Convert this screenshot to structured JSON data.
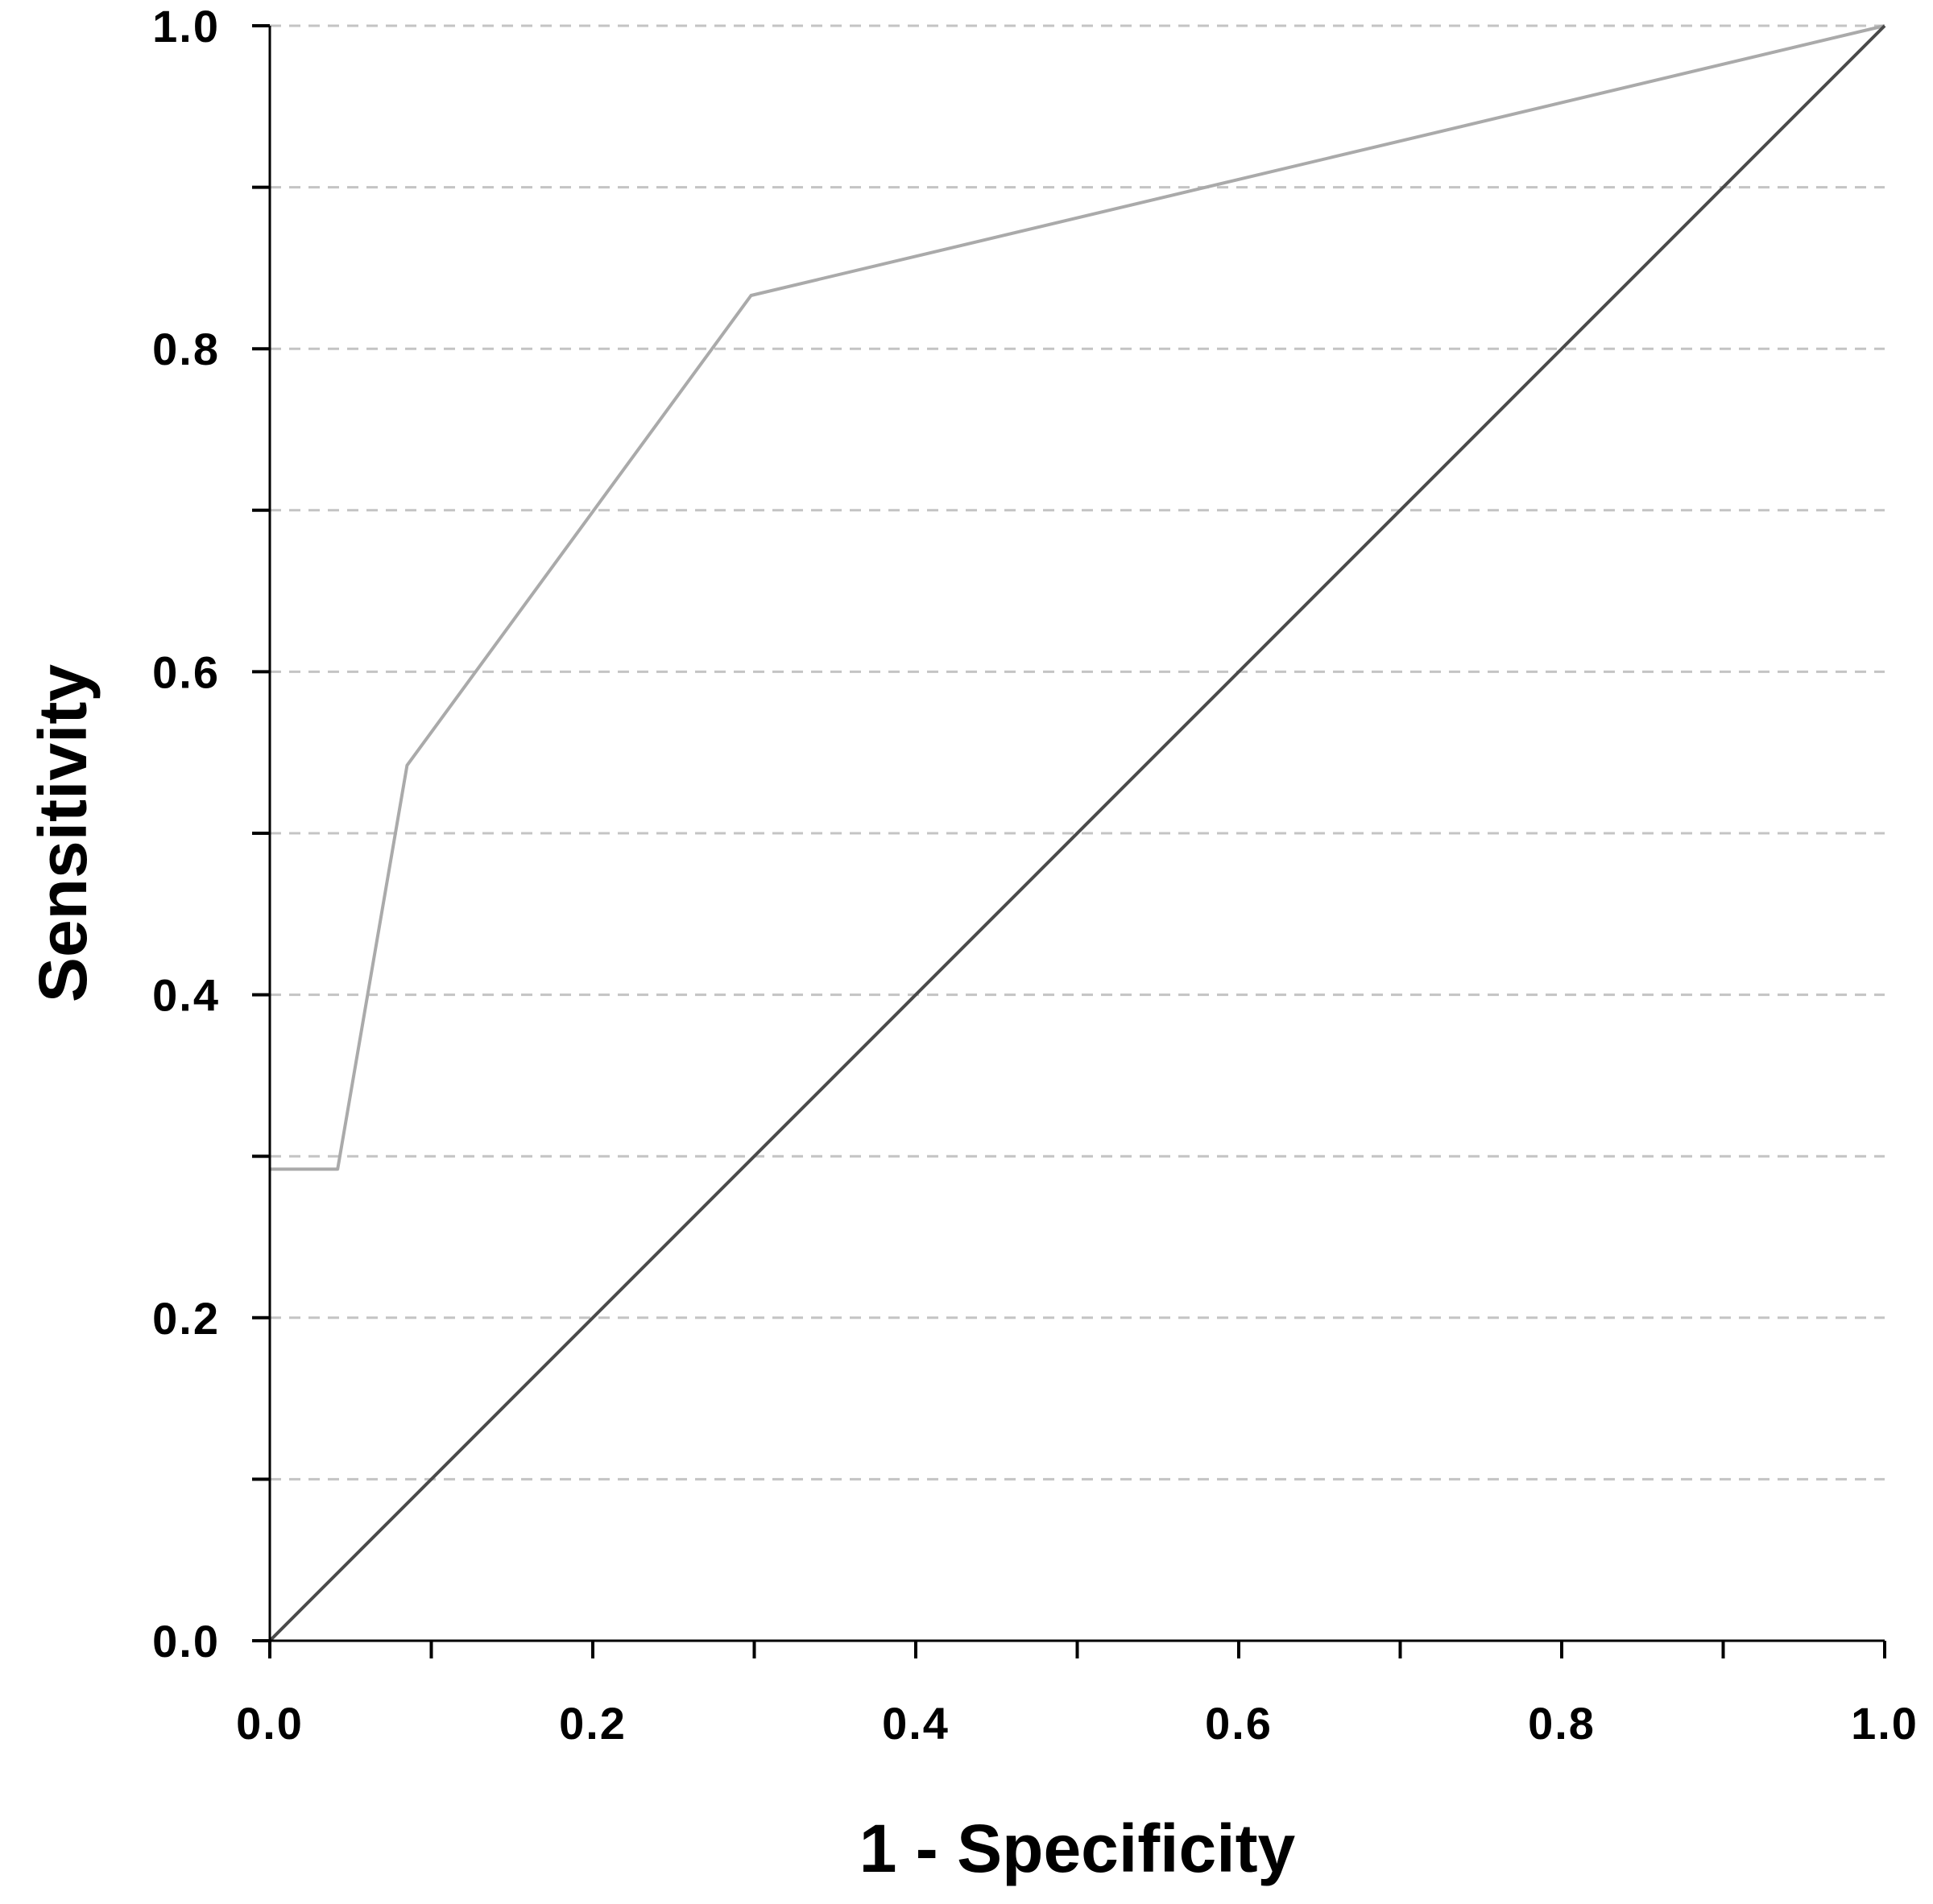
{
  "chart_data": {
    "type": "line",
    "title": "",
    "xlabel": "1 - Specificity",
    "ylabel": "Sensitivity",
    "xlim": [
      0,
      1
    ],
    "ylim": [
      0,
      1
    ],
    "x_ticks": [
      0.0,
      0.2,
      0.4,
      0.6,
      0.8,
      1.0
    ],
    "x_tick_labels": [
      "0.0",
      "0.2",
      "0.4",
      "0.6",
      "0.8",
      "1.0"
    ],
    "x_minor_ticks": [
      0.1,
      0.3,
      0.5,
      0.7,
      0.9
    ],
    "y_ticks": [
      0.0,
      0.2,
      0.4,
      0.6,
      0.8,
      1.0
    ],
    "y_tick_labels": [
      "0.0",
      "0.2",
      "0.4",
      "0.6",
      "0.8",
      "1.0"
    ],
    "y_minor_ticks": [
      0.1,
      0.3,
      0.5,
      0.7,
      0.9
    ],
    "grid": "horizontal dashed",
    "legend": "none",
    "series": [
      {
        "x": [
          0.0,
          0.042,
          0.085,
          0.298,
          1.0
        ],
        "y": [
          0.292,
          0.292,
          0.542,
          0.833,
          1.0
        ],
        "color": "#aaaaaa"
      },
      {
        "x": [
          0.0,
          1.0
        ],
        "y": [
          0.0,
          1.0
        ],
        "color": "#4a4a4a"
      }
    ]
  }
}
